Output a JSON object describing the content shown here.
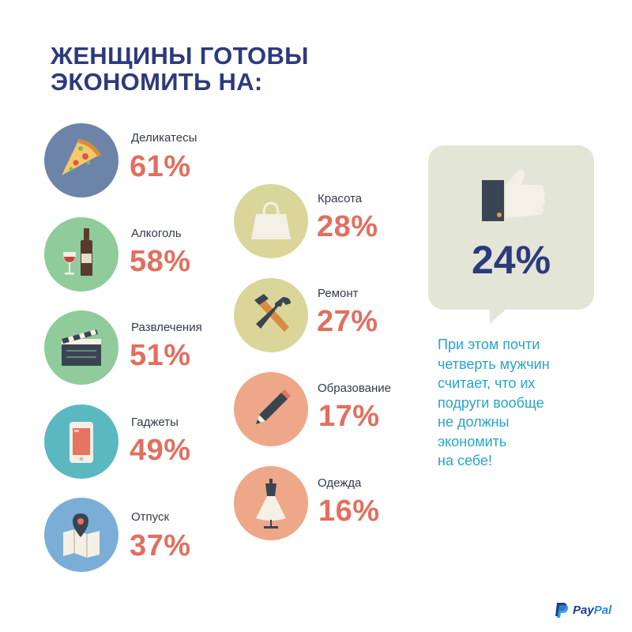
{
  "title_lines": [
    "ЖЕНЩИНЫ ГОТОВЫ",
    "ЭКОНОМИТЬ НА:"
  ],
  "chart_data": {
    "type": "table",
    "unit": "%",
    "categories": [
      "Деликатесы",
      "Алкоголь",
      "Развлечения",
      "Гаджеты",
      "Отпуск",
      "Красота",
      "Ремонт",
      "Образование",
      "Одежда"
    ],
    "values": [
      61,
      58,
      51,
      49,
      37,
      28,
      27,
      17,
      16
    ]
  },
  "items": [
    {
      "label": "Деликатесы",
      "value": "61%",
      "icon": "pizza-icon",
      "color": "#6b84a8"
    },
    {
      "label": "Алкоголь",
      "value": "58%",
      "icon": "wine-icon",
      "color": "#8fcb9b"
    },
    {
      "label": "Развлечения",
      "value": "51%",
      "icon": "clapperboard-icon",
      "color": "#8fcb9b"
    },
    {
      "label": "Гаджеты",
      "value": "49%",
      "icon": "smartphone-icon",
      "color": "#5ab9c0"
    },
    {
      "label": "Отпуск",
      "value": "37%",
      "icon": "map-pin-icon",
      "color": "#7aaed6"
    },
    {
      "label": "Красота",
      "value": "28%",
      "icon": "shopping-bag-icon",
      "color": "#dad69a"
    },
    {
      "label": "Ремонт",
      "value": "27%",
      "icon": "hammer-wrench-icon",
      "color": "#dad69a"
    },
    {
      "label": "Образование",
      "value": "17%",
      "icon": "pencil-icon",
      "color": "#eea788"
    },
    {
      "label": "Одежда",
      "value": "16%",
      "icon": "dress-icon",
      "color": "#eea788"
    }
  ],
  "highlight": {
    "value": "24%",
    "icon": "thumbs-up-icon"
  },
  "note_lines": [
    "При этом почти",
    "четверть мужчин",
    "считает, что их",
    "подруги вообще",
    "не должны",
    "экономить",
    "на себе!"
  ],
  "brand": {
    "part1": "Pay",
    "part2": "Pal"
  },
  "colors": {
    "title": "#2d3a7c",
    "value": "#e26f5f",
    "note": "#27a4c9",
    "bubble": "#e3e5d6"
  }
}
